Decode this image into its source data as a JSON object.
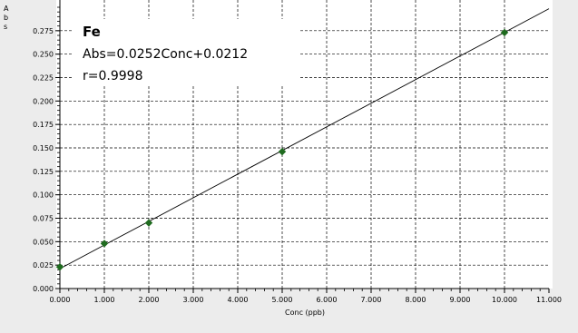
{
  "chart_data": {
    "type": "scatter",
    "xlabel": "Conc (ppb)",
    "ylabel": "Abs",
    "xlim": [
      0,
      11
    ],
    "ylim": [
      0,
      0.3
    ],
    "x_ticks": [
      "0.000",
      "1.000",
      "2.000",
      "3.000",
      "4.000",
      "5.000",
      "6.000",
      "7.000",
      "8.000",
      "9.000",
      "10.000",
      "11.000"
    ],
    "y_ticks": [
      "0.000",
      "0.025",
      "0.050",
      "0.075",
      "0.100",
      "0.125",
      "0.150",
      "0.175",
      "0.200",
      "0.225",
      "0.250",
      "0.275"
    ],
    "grid": true,
    "points": [
      {
        "x": 0,
        "y": 0.023
      },
      {
        "x": 1,
        "y": 0.048
      },
      {
        "x": 2,
        "y": 0.07
      },
      {
        "x": 5,
        "y": 0.146
      },
      {
        "x": 10,
        "y": 0.273
      }
    ],
    "fit": {
      "slope": 0.0252,
      "intercept": 0.0212
    },
    "marker_color": "#1f6b1f",
    "line_color": "#000000"
  },
  "annotation": {
    "element": "Fe",
    "equation": "Abs=0.0252Conc+0.0212",
    "r": "r=0.9998"
  }
}
